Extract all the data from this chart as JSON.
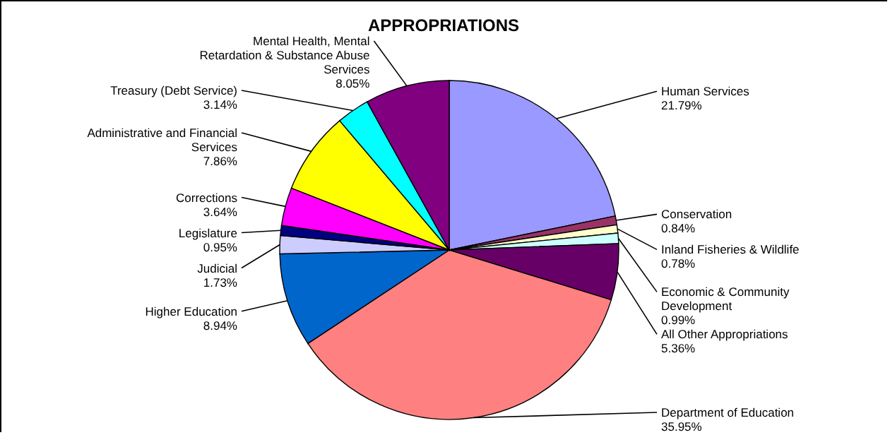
{
  "chart_data": {
    "type": "pie",
    "title": "APPROPRIATIONS",
    "categories": [
      "Human Services",
      "Conservation",
      "Inland Fisheries & Wildlife",
      "Economic & Community Development",
      "All Other Appropriations",
      "Department of Education",
      "Higher Education",
      "Judicial",
      "Legislature",
      "Corrections",
      "Administrative and Financial Services",
      "Treasury (Debt Service)",
      "Mental Health, Mental Retardation & Substance Abuse Services"
    ],
    "values": [
      21.79,
      0.84,
      0.78,
      0.99,
      5.36,
      35.95,
      8.94,
      1.73,
      0.95,
      3.64,
      7.86,
      3.14,
      8.05
    ],
    "value_labels": [
      "21.79%",
      "0.84%",
      "0.78%",
      "0.99%",
      "5.36%",
      "35.95%",
      "8.94%",
      "1.73%",
      "0.95%",
      "3.64%",
      "7.86%",
      "3.14%",
      "8.05%"
    ],
    "colors": [
      "#9999ff",
      "#993366",
      "#ffffcc",
      "#ccffff",
      "#660066",
      "#ff8080",
      "#0066cc",
      "#ccccff",
      "#000080",
      "#ff00ff",
      "#ffff00",
      "#00ffff",
      "#800080"
    ]
  }
}
